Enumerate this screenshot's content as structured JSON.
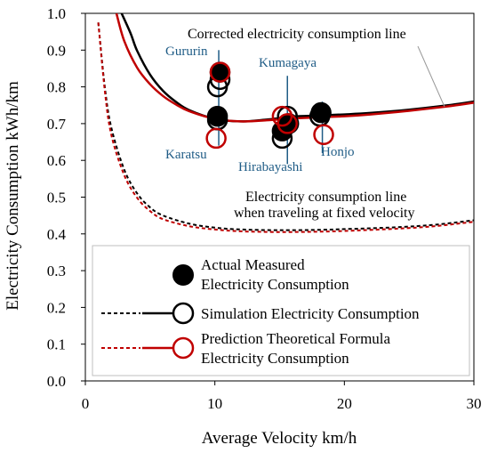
{
  "chart_data": {
    "type": "line",
    "xlabel": "Average Velocity  km/h",
    "ylabel": "Electricity Consumption  kWh/km",
    "xlim": [
      0,
      30
    ],
    "ylim": [
      0.0,
      1.0
    ],
    "x_ticks": [
      "0",
      "10",
      "20",
      "30"
    ],
    "y_ticks": [
      "0.0",
      "0.1",
      "0.2",
      "0.3",
      "0.4",
      "0.5",
      "0.6",
      "0.7",
      "0.8",
      "0.9",
      "1.0"
    ],
    "grid": false,
    "legend_placement": "bottom-right",
    "legend": [
      {
        "label_lines": [
          "Actual Measured",
          "Electricity Consumption"
        ],
        "marker": "filled-circle",
        "color": "#000000"
      },
      {
        "label_lines": [
          "Simulation Electricity Consumption"
        ],
        "marker": "open-circle",
        "line": "black dashed + solid",
        "color": "#000000"
      },
      {
        "label_lines": [
          "Prediction Theoretical Formula",
          "Electricity Consumption"
        ],
        "marker": "open-circle",
        "line": "red dashed + solid",
        "color": "#c00000"
      }
    ],
    "annotations": {
      "corrected_line": "Corrected electricity consumption line",
      "fixed_line_1": "Electricity consumption line",
      "fixed_line_2": "when traveling at fixed velocity"
    },
    "site_labels": [
      {
        "name": "Gururin",
        "x": 10.3,
        "y": 0.84
      },
      {
        "name": "Karatsu",
        "x": 10.2,
        "y": 0.71
      },
      {
        "name": "Kumagaya",
        "x": 15.2,
        "y": 0.71
      },
      {
        "name": "Hirabayashi",
        "x": 15.3,
        "y": 0.66
      },
      {
        "name": "Honjo",
        "x": 18.3,
        "y": 0.72
      }
    ],
    "series": [
      {
        "name": "Corrected electricity consumption line",
        "style": "solid",
        "color": "#000000",
        "x": [
          2.8,
          3.5,
          4,
          5,
          6,
          7,
          8,
          10,
          12,
          14,
          16,
          18,
          20,
          22,
          25,
          28,
          30
        ],
        "y": [
          1.0,
          0.945,
          0.898,
          0.833,
          0.789,
          0.759,
          0.737,
          0.713,
          0.706,
          0.711,
          0.719,
          0.722,
          0.725,
          0.729,
          0.738,
          0.75,
          0.76
        ]
      },
      {
        "name": "Corrected electricity consumption line",
        "style": "solid",
        "color": "#c00000",
        "x": [
          2.4,
          3,
          4,
          5,
          6,
          7,
          8,
          10,
          12,
          14,
          16,
          18,
          20,
          22,
          25,
          28,
          30
        ],
        "y": [
          1.0,
          0.925,
          0.852,
          0.807,
          0.775,
          0.752,
          0.734,
          0.713,
          0.706,
          0.709,
          0.714,
          0.717,
          0.72,
          0.725,
          0.735,
          0.747,
          0.757
        ]
      },
      {
        "name": "Electricity consumption line when traveling at fixed velocity",
        "style": "dashed",
        "color": "#000000",
        "x": [
          1.0,
          1.5,
          2,
          3,
          4,
          5,
          6,
          8,
          10,
          12,
          15,
          18,
          20,
          24,
          27,
          30
        ],
        "y": [
          0.975,
          0.8,
          0.69,
          0.575,
          0.51,
          0.472,
          0.45,
          0.428,
          0.417,
          0.412,
          0.41,
          0.411,
          0.413,
          0.418,
          0.425,
          0.437
        ]
      },
      {
        "name": "Electricity consumption line when traveling at fixed velocity",
        "style": "dashed",
        "color": "#c00000",
        "x": [
          1.0,
          1.5,
          2,
          3,
          4,
          5,
          6,
          8,
          10,
          12,
          15,
          18,
          20,
          24,
          27,
          30
        ],
        "y": [
          0.975,
          0.79,
          0.67,
          0.56,
          0.498,
          0.462,
          0.44,
          0.421,
          0.412,
          0.407,
          0.405,
          0.406,
          0.408,
          0.414,
          0.421,
          0.433
        ]
      }
    ],
    "points": [
      {
        "series": "Actual Measured Electricity Consumption",
        "x": 10.4,
        "y": 0.84,
        "style": "filled",
        "color": "#000000"
      },
      {
        "series": "Actual Measured Electricity Consumption",
        "x": 10.2,
        "y": 0.72,
        "style": "filled",
        "color": "#000000"
      },
      {
        "series": "Actual Measured Electricity Consumption",
        "x": 15.2,
        "y": 0.68,
        "style": "filled",
        "color": "#000000"
      },
      {
        "series": "Actual Measured Electricity Consumption",
        "x": 15.7,
        "y": 0.7,
        "style": "filled",
        "color": "#000000"
      },
      {
        "series": "Actual Measured Electricity Consumption",
        "x": 18.2,
        "y": 0.73,
        "style": "filled",
        "color": "#000000"
      },
      {
        "series": "Simulation Electricity Consumption",
        "x": 10.2,
        "y": 0.8,
        "style": "open",
        "color": "#000000"
      },
      {
        "series": "Simulation Electricity Consumption",
        "x": 10.4,
        "y": 0.82,
        "style": "open",
        "color": "#000000"
      },
      {
        "series": "Simulation Electricity Consumption",
        "x": 10.2,
        "y": 0.71,
        "style": "open",
        "color": "#000000"
      },
      {
        "series": "Simulation Electricity Consumption",
        "x": 15.2,
        "y": 0.66,
        "style": "open",
        "color": "#000000"
      },
      {
        "series": "Simulation Electricity Consumption",
        "x": 15.6,
        "y": 0.72,
        "style": "open",
        "color": "#000000"
      },
      {
        "series": "Simulation Electricity Consumption",
        "x": 18.1,
        "y": 0.72,
        "style": "open",
        "color": "#000000"
      },
      {
        "series": "Prediction Theoretical Formula Electricity Consumption",
        "x": 10.4,
        "y": 0.84,
        "style": "open",
        "color": "#c00000"
      },
      {
        "series": "Prediction Theoretical Formula Electricity Consumption",
        "x": 10.1,
        "y": 0.66,
        "style": "open",
        "color": "#c00000"
      },
      {
        "series": "Prediction Theoretical Formula Electricity Consumption",
        "x": 15.2,
        "y": 0.72,
        "style": "open",
        "color": "#c00000"
      },
      {
        "series": "Prediction Theoretical Formula Electricity Consumption",
        "x": 15.6,
        "y": 0.7,
        "style": "open",
        "color": "#c00000"
      },
      {
        "series": "Prediction Theoretical Formula Electricity Consumption",
        "x": 18.4,
        "y": 0.67,
        "style": "open",
        "color": "#c00000"
      }
    ]
  }
}
